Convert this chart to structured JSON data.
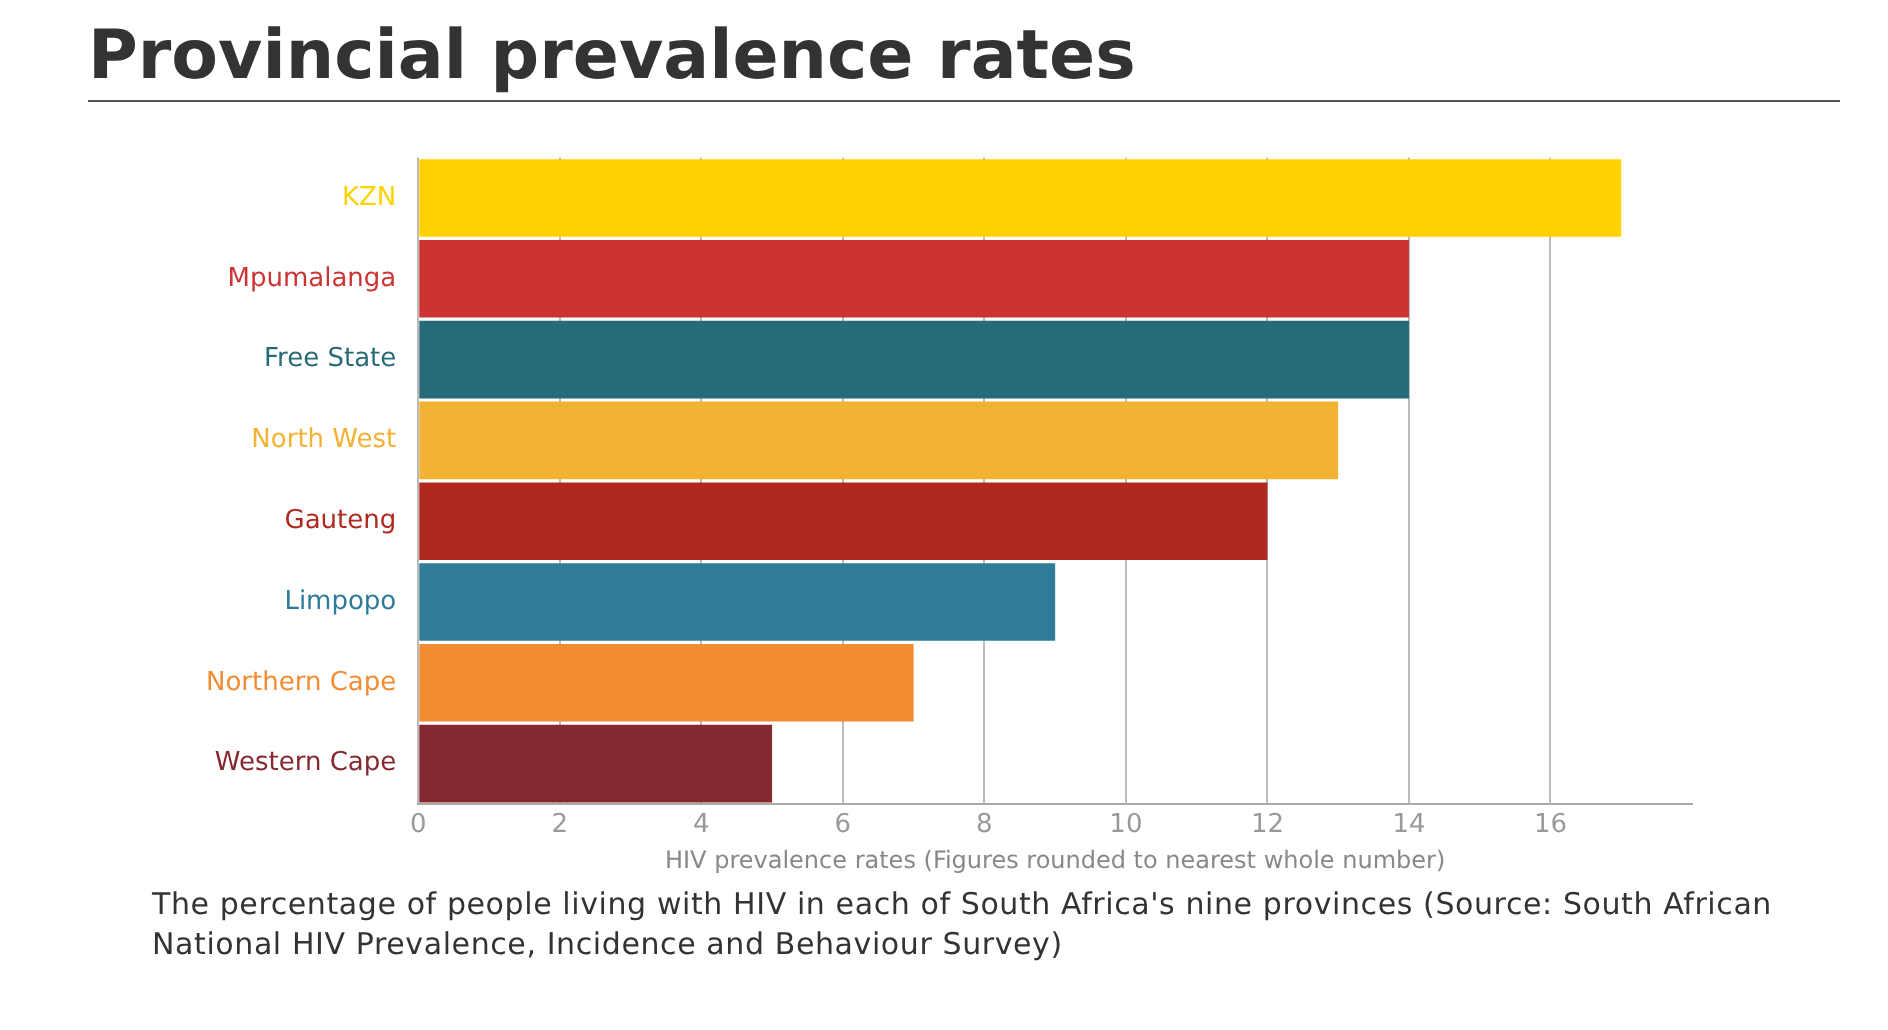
{
  "chart_data": {
    "type": "bar",
    "orientation": "horizontal",
    "title": "Provincial prevalence rates",
    "xlabel": "HIV prevalence rates (Figures rounded to nearest whole number)",
    "categories": [
      "KZN",
      "Mpumalanga",
      "Free State",
      "North West",
      "Gauteng",
      "Limpopo",
      "Northern Cape",
      "Western Cape"
    ],
    "values": [
      17,
      14,
      14,
      13,
      12,
      9,
      7,
      5
    ],
    "colors": [
      "#ffd200",
      "#cc3433",
      "#276a78",
      "#f2b233",
      "#b0291f",
      "#2f7c99",
      "#f28c33",
      "#862830"
    ],
    "xlim": [
      0,
      18
    ],
    "xticks": [
      0,
      2,
      4,
      6,
      8,
      10,
      12,
      14,
      16
    ],
    "grid": "x",
    "legend": false,
    "annotations": [
      "The percentage of people living with HIV in each of South Africa's nine provinces (Source: South African National HIV Prevalence, Incidence and Behaviour Survey)"
    ]
  }
}
